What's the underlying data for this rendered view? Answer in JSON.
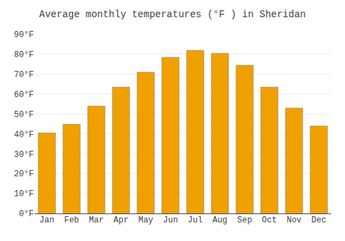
{
  "chart_data": {
    "type": "bar",
    "title": "Average monthly temperatures (°F ) in Sheridan",
    "categories": [
      "Jan",
      "Feb",
      "Mar",
      "Apr",
      "May",
      "Jun",
      "Jul",
      "Aug",
      "Sep",
      "Oct",
      "Nov",
      "Dec"
    ],
    "values": [
      40.5,
      44.8,
      54.0,
      63.5,
      71.0,
      78.5,
      82.0,
      80.5,
      74.5,
      63.5,
      53.0,
      44.0
    ],
    "color": "#F0A000",
    "ylim": [
      0,
      90
    ],
    "yticks": [
      {
        "value": 0,
        "label": "0°F"
      },
      {
        "value": 10,
        "label": "10°F"
      },
      {
        "value": 20,
        "label": "20°F"
      },
      {
        "value": 30,
        "label": "30°F"
      },
      {
        "value": 40,
        "label": "40°F"
      },
      {
        "value": 50,
        "label": "50°F"
      },
      {
        "value": 60,
        "label": "60°F"
      },
      {
        "value": 70,
        "label": "70°F"
      },
      {
        "value": 80,
        "label": "80°F"
      },
      {
        "value": 90,
        "label": "90°F"
      }
    ],
    "grid": true
  }
}
